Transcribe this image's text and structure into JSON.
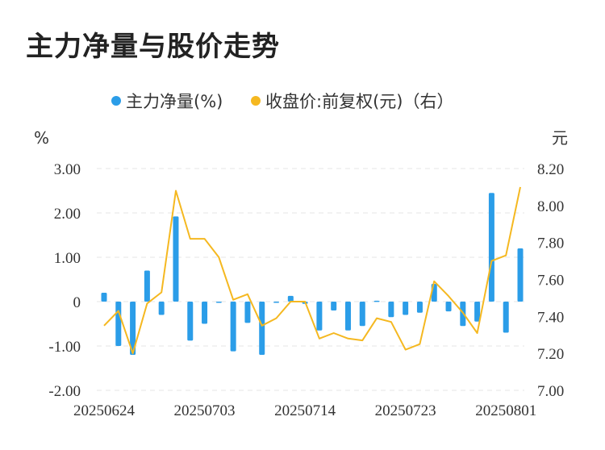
{
  "title": "主力净量与股价走势",
  "chart_data": {
    "type": "bar+line",
    "legend": [
      {
        "label": "主力净量(%)",
        "color": "#2b9de8"
      },
      {
        "label": "收盘价:前复权(元)（右）",
        "color": "#f5b820"
      }
    ],
    "y_left_unit": "%",
    "y_right_unit": "元",
    "y_left_ticks": [
      "3.00",
      "2.00",
      "1.00",
      "0",
      "-1.00",
      "-2.00"
    ],
    "y_right_ticks": [
      "8.20",
      "8.00",
      "7.80",
      "7.60",
      "7.40",
      "7.20",
      "7.00"
    ],
    "y_left_range": [
      -2,
      3
    ],
    "y_right_range": [
      7.0,
      8.2
    ],
    "x_tick_labels": [
      "20250624",
      "20250703",
      "20250714",
      "20250723",
      "20250801"
    ],
    "x_tick_indices": [
      0,
      7,
      14,
      21,
      28
    ],
    "series": [
      {
        "name": "主力净量(%)",
        "type": "bar",
        "values": [
          0.2,
          -1.0,
          -1.2,
          0.7,
          -0.3,
          1.92,
          -0.88,
          -0.5,
          -0.02,
          -1.12,
          -0.48,
          -1.2,
          0.0,
          0.13,
          -0.05,
          -0.65,
          -0.2,
          -0.65,
          -0.55,
          0.02,
          -0.35,
          -0.3,
          -0.25,
          0.4,
          -0.22,
          -0.55,
          -0.45,
          2.45,
          -0.7,
          1.2
        ]
      },
      {
        "name": "收盘价:前复权(元)（右）",
        "type": "line",
        "values": [
          7.35,
          7.43,
          7.2,
          7.47,
          7.53,
          8.08,
          7.82,
          7.82,
          7.72,
          7.49,
          7.52,
          7.35,
          7.39,
          7.48,
          7.48,
          7.28,
          7.31,
          7.28,
          7.27,
          7.39,
          7.37,
          7.22,
          7.25,
          7.59,
          7.51,
          7.42,
          7.31,
          7.7,
          7.73,
          8.1
        ]
      }
    ]
  }
}
